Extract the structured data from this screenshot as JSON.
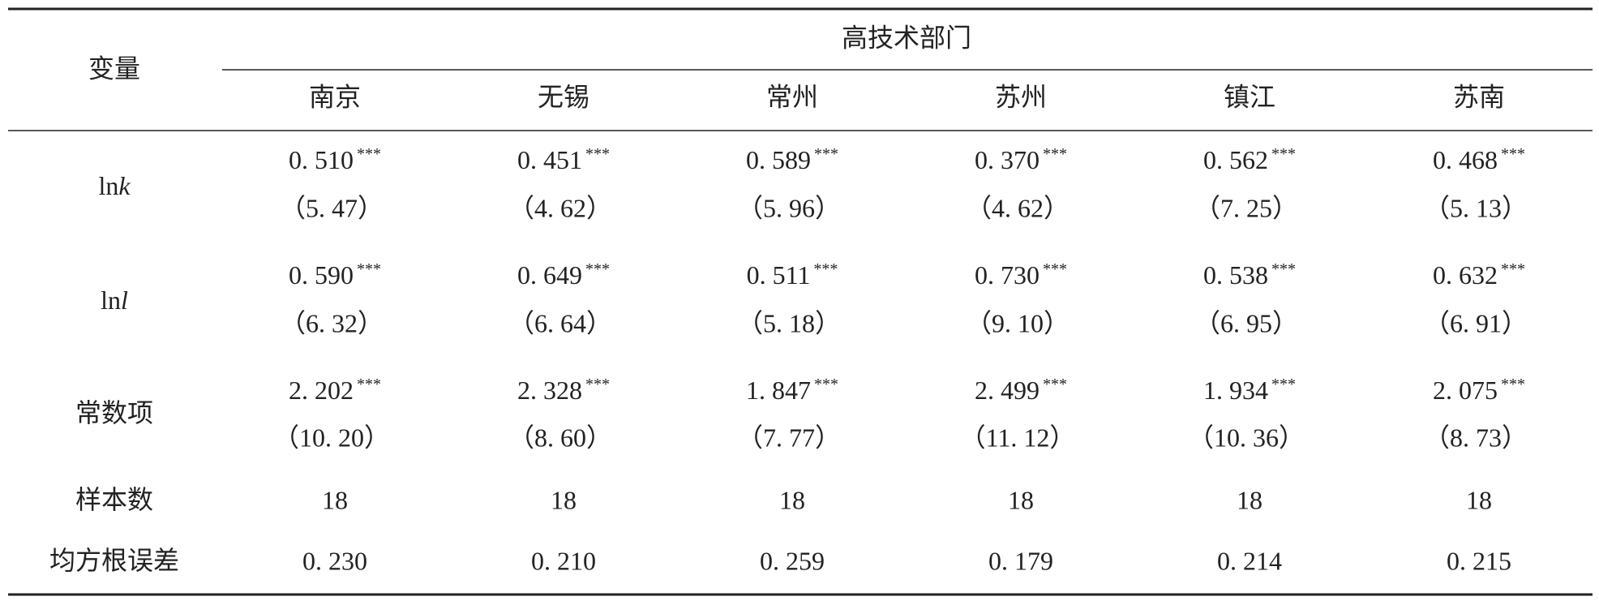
{
  "table": {
    "header": {
      "row_label": "变量",
      "group": "高技术部门",
      "columns": [
        "南京",
        "无锡",
        "常州",
        "苏州",
        "镇江",
        "苏南"
      ]
    },
    "rows": [
      {
        "label": {
          "text": "ln",
          "var": "k"
        },
        "cells": [
          {
            "coef": "0. 510",
            "stars": "***",
            "t": "（5. 47）"
          },
          {
            "coef": "0. 451",
            "stars": "***",
            "t": "（4. 62）"
          },
          {
            "coef": "0. 589",
            "stars": "***",
            "t": "（5. 96）"
          },
          {
            "coef": "0. 370",
            "stars": "***",
            "t": "（4. 62）"
          },
          {
            "coef": "0. 562",
            "stars": "***",
            "t": "（7. 25）"
          },
          {
            "coef": "0. 468",
            "stars": "***",
            "t": "（5. 13）"
          }
        ]
      },
      {
        "label": {
          "text": "ln",
          "var": "l"
        },
        "cells": [
          {
            "coef": "0. 590",
            "stars": "***",
            "t": "（6. 32）"
          },
          {
            "coef": "0. 649",
            "stars": "***",
            "t": "（6. 64）"
          },
          {
            "coef": "0. 511",
            "stars": "***",
            "t": "（5. 18）"
          },
          {
            "coef": "0. 730",
            "stars": "***",
            "t": "（9. 10）"
          },
          {
            "coef": "0. 538",
            "stars": "***",
            "t": "（6. 95）"
          },
          {
            "coef": "0. 632",
            "stars": "***",
            "t": "（6. 91）"
          }
        ]
      },
      {
        "label": {
          "text": "常数项"
        },
        "cells": [
          {
            "coef": "2. 202",
            "stars": "***",
            "t": "（10. 20）"
          },
          {
            "coef": "2. 328",
            "stars": "***",
            "t": "（8. 60）"
          },
          {
            "coef": "1. 847",
            "stars": "***",
            "t": "（7. 77）"
          },
          {
            "coef": "2. 499",
            "stars": "***",
            "t": "（11. 12）"
          },
          {
            "coef": "1. 934",
            "stars": "***",
            "t": "（10. 36）"
          },
          {
            "coef": "2. 075",
            "stars": "***",
            "t": "（8. 73）"
          }
        ]
      },
      {
        "label": {
          "text": "样本数"
        },
        "cells": [
          "18",
          "18",
          "18",
          "18",
          "18",
          "18"
        ]
      },
      {
        "label": {
          "text": "均方根误差"
        },
        "cells": [
          "0. 230",
          "0. 210",
          "0. 259",
          "0. 179",
          "0. 214",
          "0. 215"
        ]
      }
    ]
  }
}
